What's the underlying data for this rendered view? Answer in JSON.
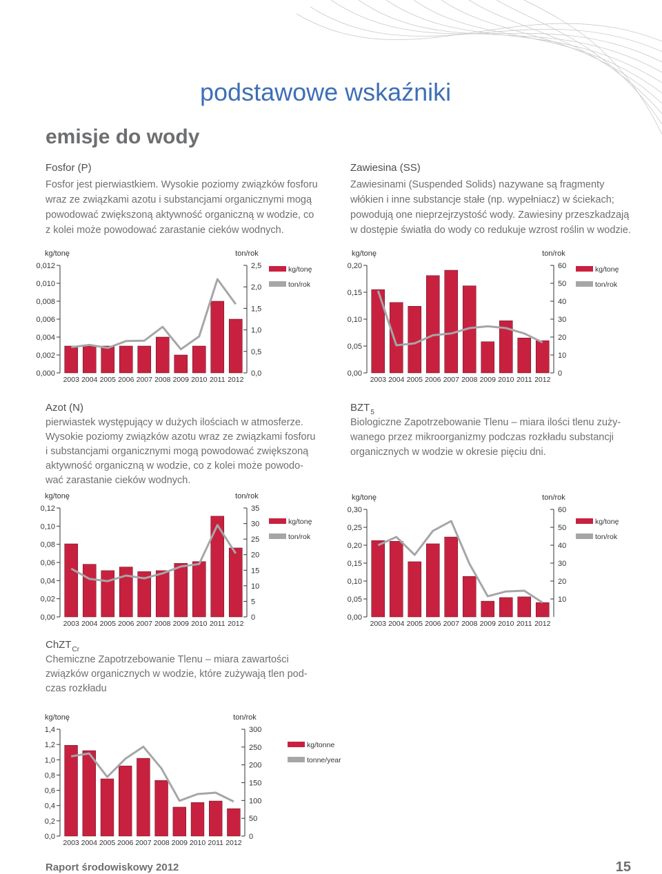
{
  "header": {
    "title": "podstawowe wskaźniki",
    "subtitle": "emisje do wody"
  },
  "sections": [
    {
      "heading": "Fosfor (P)",
      "lines": [
        "Fosfor jest pierwiastkiem. Wysokie poziomy związków fosforu",
        "wraz ze związkami azotu i substancjami organicznymi mogą",
        "powodować zwiększoną aktywność organiczną w wodzie, co",
        "z kolei może powodować zarastanie cieków wodnych."
      ]
    },
    {
      "heading": "Zawiesina (SS)",
      "lines": [
        "Zawiesinami (Suspended Solids) nazywane są fragmenty",
        "włókien i inne substancje stałe (np. wypełniacz) w ściekach;",
        "powodują one nieprzejrzystość wody. Zawiesiny przeszkadzają",
        "w dostępie światła do wody co redukuje wzrost roślin w wodzie."
      ]
    },
    {
      "heading": "Azot (N)",
      "lines": [
        "pierwiastek występujący w dużych ilościach w atmosferze.",
        "Wysokie poziomy związków azotu wraz ze związkami fosforu",
        "i substancjami organicznymi mogą powodować zwiększoną",
        "aktywność organiczną w wodzie, co z kolei może powodo-",
        "wać zarastanie cieków wodnych."
      ]
    },
    {
      "heading": "BZT",
      "heading_sub": "5",
      "lines": [
        "Biologiczne Zapotrzebowanie Tlenu – miara ilości tlenu zuży-",
        "wanego przez mikroorganizmy podczas rozkładu substancji",
        "organicznych w wodzie w okresie pięciu dni."
      ]
    },
    {
      "heading": "ChZT",
      "heading_sub": "Cr",
      "lines": [
        "Chemiczne Zapotrzebowanie Tlenu – miara zawartości",
        "związków organicznych w wodzie, które zużywają tlen pod-",
        "czas rozkładu"
      ]
    }
  ],
  "chart_data": [
    {
      "type": "bar",
      "y_label": "kg/tonę",
      "y2_label": "ton/rok",
      "categories": [
        "2003",
        "2004",
        "2005",
        "2006",
        "2007",
        "2008",
        "2009",
        "2010",
        "2011",
        "2012"
      ],
      "series": [
        {
          "name": "kg/tonę",
          "color": "#c8213f",
          "values": [
            0.003,
            0.003,
            0.003,
            0.003,
            0.003,
            0.004,
            0.002,
            0.003,
            0.008,
            0.006
          ]
        },
        {
          "name": "ton/rok",
          "color": "#a6a6a8",
          "type": "line",
          "axis": "y2",
          "values": [
            0.6,
            0.65,
            0.58,
            0.74,
            0.75,
            1.07,
            0.55,
            0.85,
            2.18,
            1.6
          ]
        }
      ],
      "ylim": [
        0,
        0.012
      ],
      "yticks": [
        {
          "value": 0,
          "label": "0,000"
        },
        {
          "value": 0.002,
          "label": "0,002"
        },
        {
          "value": 0.004,
          "label": "0,004"
        },
        {
          "value": 0.006,
          "label": "0,006"
        },
        {
          "value": 0.008,
          "label": "0,008"
        },
        {
          "value": 0.01,
          "label": "0,010"
        },
        {
          "value": 0.012,
          "label": "0,012"
        }
      ],
      "y2lim": [
        0,
        2.5
      ],
      "y2ticks": [
        {
          "value": 0,
          "label": "0,0"
        },
        {
          "value": 0.5,
          "label": "0,5"
        },
        {
          "value": 1,
          "label": "1,0"
        },
        {
          "value": 1.5,
          "label": "1,5"
        },
        {
          "value": 2,
          "label": "2,0"
        },
        {
          "value": 2.5,
          "label": "2,5"
        }
      ],
      "grid": false
    },
    {
      "type": "bar",
      "y_label": "kg/tonę",
      "y2_label": "ton/rok",
      "categories": [
        "2003",
        "2004",
        "2005",
        "2006",
        "2007",
        "2008",
        "2009",
        "2010",
        "2011",
        "2012"
      ],
      "series": [
        {
          "name": "kg/tonę",
          "color": "#c8213f",
          "values": [
            0.155,
            0.131,
            0.124,
            0.181,
            0.191,
            0.162,
            0.058,
            0.097,
            0.065,
            0.06
          ]
        },
        {
          "name": "ton/rok",
          "color": "#a6a6a8",
          "type": "line",
          "axis": "y2",
          "values": [
            45.8,
            15.4,
            16.5,
            21,
            22,
            25,
            26,
            25,
            22,
            17
          ]
        }
      ],
      "ylim": [
        0,
        0.2
      ],
      "yticks": [
        {
          "value": 0,
          "label": "0,00"
        },
        {
          "value": 0.05,
          "label": "0,05"
        },
        {
          "value": 0.1,
          "label": "0,10"
        },
        {
          "value": 0.15,
          "label": "0,15"
        },
        {
          "value": 0.2,
          "label": "0,20"
        }
      ],
      "y2lim": [
        0,
        60
      ],
      "y2ticks": [
        0,
        10,
        20,
        30,
        40,
        50,
        60
      ],
      "grid": false
    },
    {
      "type": "bar",
      "y_label": "kg/tonę",
      "y2_label": "ton/rok",
      "categories": [
        "2003",
        "2004",
        "2005",
        "2006",
        "2007",
        "2008",
        "2009",
        "2010",
        "2011",
        "2012"
      ],
      "series": [
        {
          "name": "kg/tonę",
          "color": "#c8213f",
          "values": [
            0.0805,
            0.058,
            0.051,
            0.055,
            0.05,
            0.051,
            0.059,
            0.061,
            0.111,
            0.076
          ]
        },
        {
          "name": "ton/rok",
          "color": "#a6a6a8",
          "type": "line",
          "axis": "y2",
          "values": [
            15.5,
            12.2,
            11.5,
            13.3,
            12.4,
            14,
            16.2,
            17,
            29.5,
            20.4
          ]
        }
      ],
      "ylim": [
        0,
        0.12
      ],
      "yticks": [
        {
          "value": 0,
          "label": "0,00"
        },
        {
          "value": 0.02,
          "label": "0,02"
        },
        {
          "value": 0.04,
          "label": "0,04"
        },
        {
          "value": 0.06,
          "label": "0,06"
        },
        {
          "value": 0.08,
          "label": "0,08"
        },
        {
          "value": 0.1,
          "label": "0,10"
        },
        {
          "value": 0.12,
          "label": "0,12"
        }
      ],
      "y2lim": [
        0,
        35
      ],
      "y2ticks": [
        0,
        5,
        10,
        15,
        20,
        25,
        30,
        35
      ],
      "grid": false
    },
    {
      "type": "bar",
      "y_label": "kg/tonę",
      "y2_label": "ton/rok",
      "categories": [
        "2003",
        "2004",
        "2005",
        "2006",
        "2007",
        "2008",
        "2009",
        "2010",
        "2011",
        "2012"
      ],
      "series": [
        {
          "name": "kg/tonę",
          "color": "#c8213f",
          "values": [
            0.213,
            0.211,
            0.154,
            0.204,
            0.223,
            0.113,
            0.044,
            0.054,
            0.056,
            0.04
          ]
        },
        {
          "name": "ton/rok",
          "color": "#a6a6a8",
          "type": "line",
          "axis": "y2",
          "values": [
            40,
            44.6,
            34.6,
            48,
            53.5,
            29.6,
            11.5,
            14.2,
            14.6,
            8
          ]
        }
      ],
      "ylim": [
        0,
        0.3
      ],
      "yticks": [
        {
          "value": 0,
          "label": "0,00"
        },
        {
          "value": 0.05,
          "label": "0,05"
        },
        {
          "value": 0.1,
          "label": "0,10"
        },
        {
          "value": 0.15,
          "label": "0,15"
        },
        {
          "value": 0.2,
          "label": "0,20"
        },
        {
          "value": 0.25,
          "label": "0,25"
        },
        {
          "value": 0.3,
          "label": "0,30"
        }
      ],
      "y2lim": [
        0,
        60
      ],
      "y2ticks": [
        10,
        20,
        30,
        40,
        50,
        60
      ],
      "grid": false
    },
    {
      "type": "bar",
      "y_label": "kg/tonę",
      "y2_label": "ton/rok",
      "categories": [
        "2003",
        "2004",
        "2005",
        "2006",
        "2007",
        "2008",
        "2009",
        "2010",
        "2011",
        "2012"
      ],
      "series": [
        {
          "name": "kg/tonne",
          "color": "#c8213f",
          "values": [
            1.19,
            1.12,
            0.75,
            0.92,
            1.02,
            0.73,
            0.38,
            0.44,
            0.46,
            0.36
          ]
        },
        {
          "name": "tonne/year",
          "color": "#a6a6a8",
          "type": "line",
          "axis": "y2",
          "values": [
            224,
            232,
            166,
            217,
            251,
            190,
            99,
            118,
            122,
            97
          ]
        }
      ],
      "ylim": [
        0,
        1.4
      ],
      "yticks": [
        {
          "value": 0,
          "label": "0,0"
        },
        {
          "value": 0.2,
          "label": "0,2"
        },
        {
          "value": 0.4,
          "label": "0,4"
        },
        {
          "value": 0.6,
          "label": "0,6"
        },
        {
          "value": 0.8,
          "label": "0,8"
        },
        {
          "value": 1,
          "label": "1,0"
        },
        {
          "value": 1.2,
          "label": "1,2"
        },
        {
          "value": 1.4,
          "label": "1,4"
        }
      ],
      "y2lim": [
        0,
        300
      ],
      "y2ticks": [
        0,
        50,
        100,
        150,
        200,
        250,
        300
      ],
      "grid": false
    }
  ],
  "footer": {
    "text": "Raport środowiskowy 2012",
    "page": "15"
  }
}
